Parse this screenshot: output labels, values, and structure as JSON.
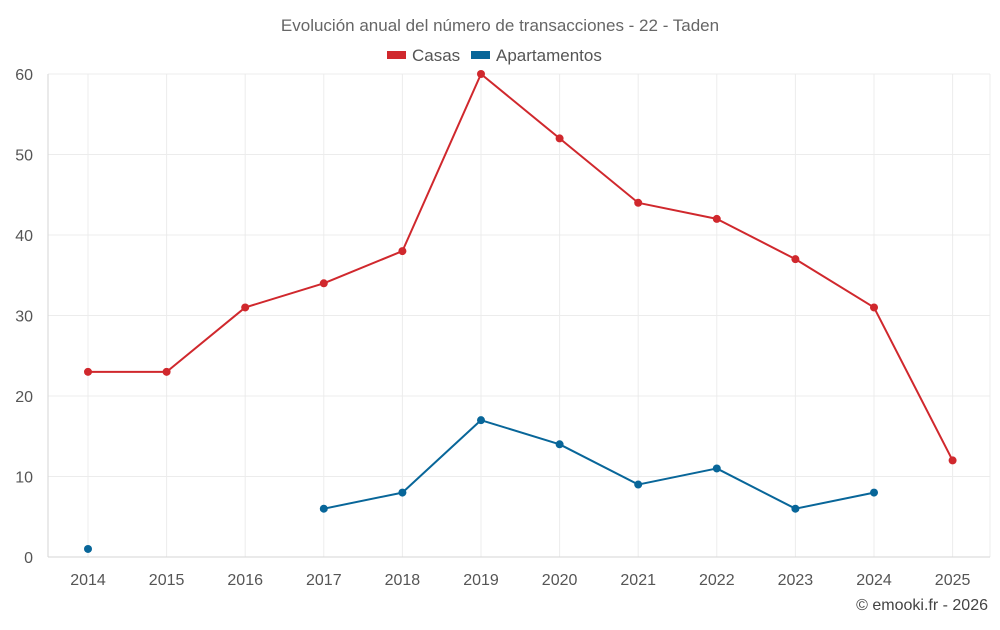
{
  "chart_data": {
    "type": "line",
    "title": "Evolución anual del número de transacciones - 22 - Taden",
    "categories": [
      "2014",
      "2015",
      "2016",
      "2017",
      "2018",
      "2019",
      "2020",
      "2021",
      "2022",
      "2023",
      "2024",
      "2025"
    ],
    "ylim": [
      0,
      60
    ],
    "yticks": [
      0,
      10,
      20,
      30,
      40,
      50,
      60
    ],
    "grid": true,
    "legend_position": "top-center",
    "series": [
      {
        "name": "Casas",
        "color": "#d0282d",
        "values": [
          23,
          23,
          31,
          34,
          38,
          60,
          52,
          44,
          42,
          37,
          31,
          12
        ]
      },
      {
        "name": "Apartamentos",
        "color": "#086699",
        "values": [
          1,
          null,
          null,
          6,
          8,
          17,
          14,
          9,
          11,
          6,
          8,
          null
        ]
      }
    ],
    "credit": "© emooki.fr - 2026"
  }
}
